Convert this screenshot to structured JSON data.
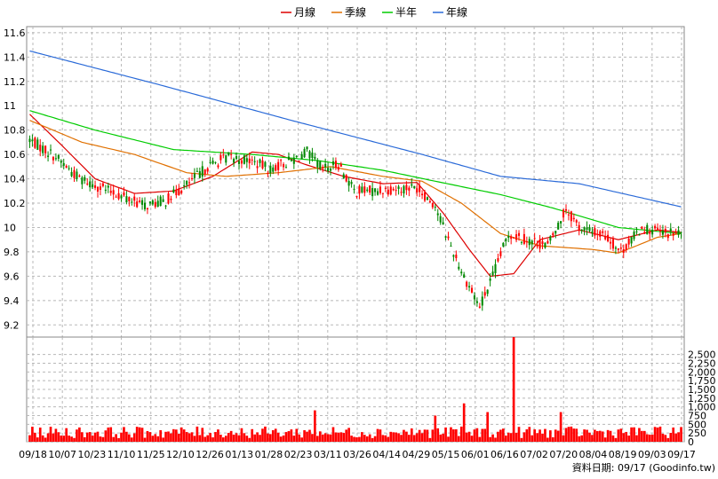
{
  "legend": [
    {
      "label": "月線",
      "color": "#dd0000"
    },
    {
      "label": "季線",
      "color": "#e07000"
    },
    {
      "label": "半年",
      "color": "#00cc00"
    },
    {
      "label": "年線",
      "color": "#2a6ad8"
    }
  ],
  "credit": "資料日期: 09/17  (Goodinfo.tw)",
  "colors": {
    "up": "#ff0000",
    "down": "#008800",
    "volume": "#ff0000",
    "grid": "#b8b8b8"
  },
  "chart_data": {
    "type": "candlestick",
    "price_axis": {
      "ylim": [
        9.1,
        11.65
      ],
      "ticks": [
        "9.2",
        "9.4",
        "9.6",
        "9.8",
        "10",
        "10.2",
        "10.4",
        "10.6",
        "10.8",
        "11",
        "11.2",
        "11.4",
        "11.6"
      ]
    },
    "volume_axis": {
      "ylim": [
        0,
        3000
      ],
      "ticks": [
        "0",
        "250",
        "500",
        "750",
        "1,000",
        "1,250",
        "1,500",
        "1,750",
        "2,000",
        "2,250",
        "2,500"
      ]
    },
    "x_tick_labels": [
      "09/18",
      "10/07",
      "10/23",
      "11/10",
      "11/25",
      "12/10",
      "12/26",
      "01/13",
      "01/28",
      "02/23",
      "03/11",
      "03/26",
      "04/14",
      "04/29",
      "05/15",
      "06/01",
      "06/16",
      "07/02",
      "07/20",
      "08/04",
      "08/19",
      "09/03",
      "09/17"
    ],
    "num_days": 250,
    "price_path": [
      [
        0,
        10.72
      ],
      [
        10,
        10.58
      ],
      [
        18,
        10.42
      ],
      [
        28,
        10.32
      ],
      [
        36,
        10.25
      ],
      [
        44,
        10.18
      ],
      [
        52,
        10.22
      ],
      [
        60,
        10.35
      ],
      [
        68,
        10.5
      ],
      [
        76,
        10.58
      ],
      [
        84,
        10.55
      ],
      [
        92,
        10.48
      ],
      [
        100,
        10.55
      ],
      [
        106,
        10.62
      ],
      [
        112,
        10.48
      ],
      [
        118,
        10.52
      ],
      [
        124,
        10.3
      ],
      [
        132,
        10.3
      ],
      [
        140,
        10.32
      ],
      [
        148,
        10.33
      ],
      [
        155,
        10.18
      ],
      [
        160,
        9.9
      ],
      [
        166,
        9.6
      ],
      [
        172,
        9.35
      ],
      [
        177,
        9.6
      ],
      [
        183,
        9.95
      ],
      [
        190,
        9.9
      ],
      [
        198,
        9.85
      ],
      [
        205,
        10.15
      ],
      [
        210,
        10.0
      ],
      [
        220,
        9.93
      ],
      [
        226,
        9.8
      ],
      [
        234,
        10.0
      ],
      [
        242,
        9.95
      ],
      [
        249,
        9.95
      ]
    ],
    "ma_paths": {
      "月線": [
        [
          0,
          10.93
        ],
        [
          12,
          10.68
        ],
        [
          25,
          10.4
        ],
        [
          40,
          10.28
        ],
        [
          55,
          10.3
        ],
        [
          70,
          10.42
        ],
        [
          85,
          10.62
        ],
        [
          95,
          10.6
        ],
        [
          105,
          10.52
        ],
        [
          120,
          10.42
        ],
        [
          135,
          10.36
        ],
        [
          148,
          10.37
        ],
        [
          158,
          10.12
        ],
        [
          168,
          9.82
        ],
        [
          176,
          9.6
        ],
        [
          185,
          9.62
        ],
        [
          195,
          9.9
        ],
        [
          210,
          9.98
        ],
        [
          225,
          9.9
        ],
        [
          240,
          9.98
        ],
        [
          249,
          9.96
        ]
      ],
      "季線": [
        [
          0,
          10.88
        ],
        [
          20,
          10.7
        ],
        [
          40,
          10.6
        ],
        [
          60,
          10.45
        ],
        [
          75,
          10.42
        ],
        [
          95,
          10.45
        ],
        [
          115,
          10.5
        ],
        [
          135,
          10.42
        ],
        [
          150,
          10.38
        ],
        [
          165,
          10.2
        ],
        [
          180,
          9.95
        ],
        [
          195,
          9.85
        ],
        [
          215,
          9.82
        ],
        [
          225,
          9.79
        ],
        [
          240,
          9.92
        ],
        [
          249,
          9.95
        ]
      ],
      "半年": [
        [
          0,
          10.96
        ],
        [
          25,
          10.8
        ],
        [
          55,
          10.64
        ],
        [
          85,
          10.6
        ],
        [
          110,
          10.55
        ],
        [
          135,
          10.47
        ],
        [
          155,
          10.38
        ],
        [
          180,
          10.27
        ],
        [
          200,
          10.16
        ],
        [
          225,
          10.0
        ],
        [
          249,
          9.95
        ]
      ],
      "年線": [
        [
          0,
          11.45
        ],
        [
          50,
          11.17
        ],
        [
          100,
          10.88
        ],
        [
          150,
          10.6
        ],
        [
          180,
          10.42
        ],
        [
          210,
          10.36
        ],
        [
          249,
          10.17
        ]
      ]
    },
    "volume_profile": {
      "baseline": 300,
      "spikes": [
        [
          109,
          900
        ],
        [
          166,
          1100
        ],
        [
          175,
          850
        ],
        [
          185,
          3000
        ],
        [
          203,
          850
        ],
        [
          155,
          750
        ]
      ]
    }
  }
}
